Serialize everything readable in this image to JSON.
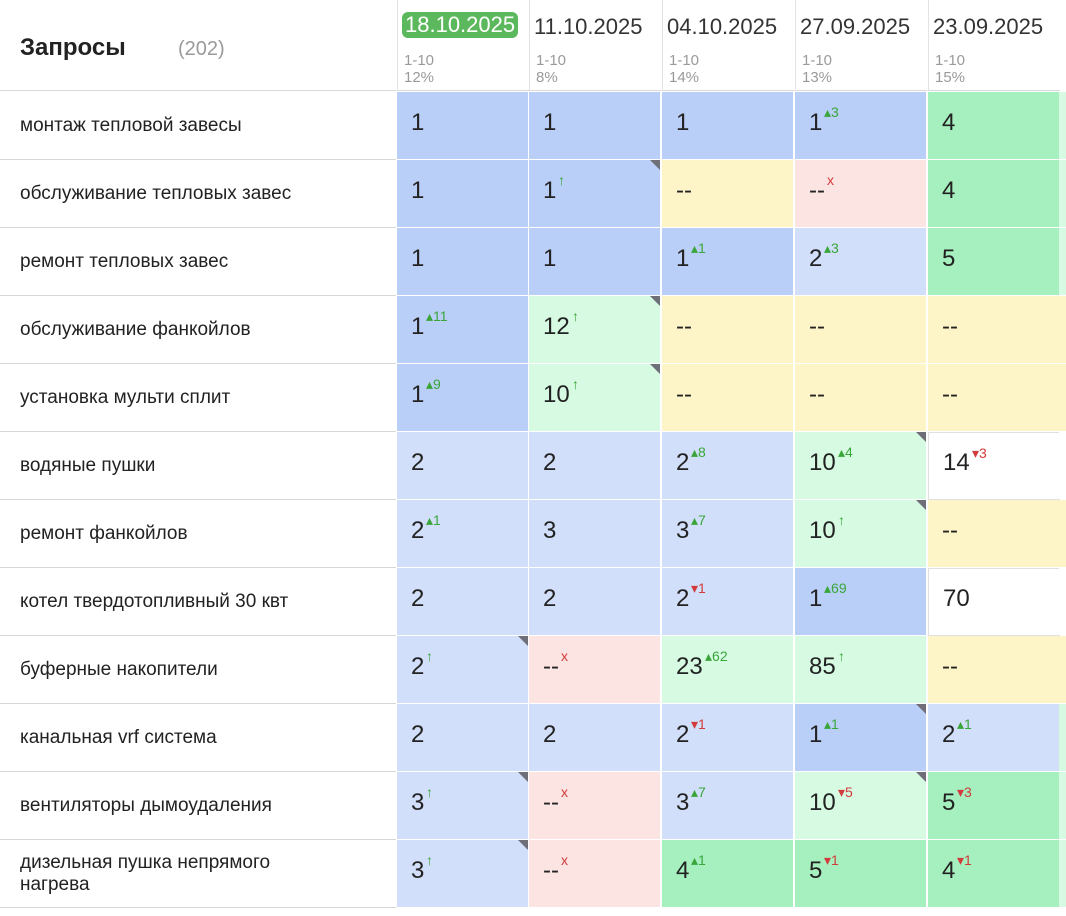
{
  "header": {
    "title": "Запросы",
    "count": "(202)"
  },
  "dates": [
    {
      "label": "18.10.2025",
      "range": "1-10",
      "pct": "12%",
      "active": true
    },
    {
      "label": "11.10.2025",
      "range": "1-10",
      "pct": "8%"
    },
    {
      "label": "04.10.2025",
      "range": "1-10",
      "pct": "14%"
    },
    {
      "label": "27.09.2025",
      "range": "1-10",
      "pct": "13%"
    },
    {
      "label": "23.09.2025",
      "range": "1-10",
      "pct": "15%"
    }
  ],
  "rows": [
    {
      "query": "монтаж тепловой завесы",
      "cells": [
        {
          "v": "1",
          "c": "blue1"
        },
        {
          "v": "1",
          "c": "blue1"
        },
        {
          "v": "1",
          "c": "blue1"
        },
        {
          "v": "1",
          "c": "blue1",
          "d": "3",
          "t": "up"
        },
        {
          "v": "4",
          "c": "green1"
        }
      ]
    },
    {
      "query": "обслуживание тепловых завес",
      "cells": [
        {
          "v": "1",
          "c": "blue1"
        },
        {
          "v": "1",
          "c": "blue1",
          "d": "↑",
          "t": "up",
          "corner": true
        },
        {
          "v": "--",
          "c": "yellow"
        },
        {
          "v": "--",
          "c": "red",
          "d": "x",
          "t": "x"
        },
        {
          "v": "4",
          "c": "green1"
        }
      ]
    },
    {
      "query": "ремонт тепловых завес",
      "cells": [
        {
          "v": "1",
          "c": "blue1"
        },
        {
          "v": "1",
          "c": "blue1"
        },
        {
          "v": "1",
          "c": "blue1",
          "d": "1",
          "t": "up"
        },
        {
          "v": "2",
          "c": "blue2",
          "d": "3",
          "t": "up"
        },
        {
          "v": "5",
          "c": "green1"
        }
      ]
    },
    {
      "query": "обслуживание фанкойлов",
      "cells": [
        {
          "v": "1",
          "c": "blue1",
          "d": "11",
          "t": "up"
        },
        {
          "v": "12",
          "c": "green2",
          "d": "↑",
          "t": "up",
          "corner": true
        },
        {
          "v": "--",
          "c": "yellow"
        },
        {
          "v": "--",
          "c": "yellow"
        },
        {
          "v": "--",
          "c": "yellow"
        }
      ]
    },
    {
      "query": "установка мульти сплит",
      "cells": [
        {
          "v": "1",
          "c": "blue1",
          "d": "9",
          "t": "up"
        },
        {
          "v": "10",
          "c": "green2",
          "d": "↑",
          "t": "up",
          "corner": true
        },
        {
          "v": "--",
          "c": "yellow"
        },
        {
          "v": "--",
          "c": "yellow"
        },
        {
          "v": "--",
          "c": "yellow"
        }
      ]
    },
    {
      "query": "водяные пушки",
      "cells": [
        {
          "v": "2",
          "c": "blue2"
        },
        {
          "v": "2",
          "c": "blue2"
        },
        {
          "v": "2",
          "c": "blue2",
          "d": "8",
          "t": "up"
        },
        {
          "v": "10",
          "c": "green2",
          "d": "4",
          "t": "up",
          "corner": true
        },
        {
          "v": "14",
          "c": "white",
          "d": "3",
          "t": "down"
        }
      ]
    },
    {
      "query": "ремонт фанкойлов",
      "cells": [
        {
          "v": "2",
          "c": "blue2",
          "d": "1",
          "t": "up"
        },
        {
          "v": "3",
          "c": "blue2"
        },
        {
          "v": "3",
          "c": "blue2",
          "d": "7",
          "t": "up"
        },
        {
          "v": "10",
          "c": "green2",
          "d": "↑",
          "t": "up",
          "corner": true
        },
        {
          "v": "--",
          "c": "yellow"
        }
      ]
    },
    {
      "query": "котел твердотопливный 30 квт",
      "cells": [
        {
          "v": "2",
          "c": "blue2"
        },
        {
          "v": "2",
          "c": "blue2"
        },
        {
          "v": "2",
          "c": "blue2",
          "d": "1",
          "t": "down"
        },
        {
          "v": "1",
          "c": "blue1",
          "d": "69",
          "t": "up"
        },
        {
          "v": "70",
          "c": "white"
        }
      ]
    },
    {
      "query": "буферные накопители",
      "cells": [
        {
          "v": "2",
          "c": "blue2",
          "d": "↑",
          "t": "up",
          "corner": true
        },
        {
          "v": "--",
          "c": "red",
          "d": "x",
          "t": "x"
        },
        {
          "v": "23",
          "c": "green2",
          "d": "62",
          "t": "up"
        },
        {
          "v": "85",
          "c": "green2",
          "d": "↑",
          "t": "up"
        },
        {
          "v": "--",
          "c": "yellow"
        }
      ]
    },
    {
      "query": "канальная vrf система",
      "cells": [
        {
          "v": "2",
          "c": "blue2"
        },
        {
          "v": "2",
          "c": "blue2"
        },
        {
          "v": "2",
          "c": "blue2",
          "d": "1",
          "t": "down"
        },
        {
          "v": "1",
          "c": "blue1",
          "d": "1",
          "t": "up",
          "corner": true
        },
        {
          "v": "2",
          "c": "blue2",
          "d": "1",
          "t": "up"
        }
      ]
    },
    {
      "query": "вентиляторы дымоудаления",
      "cells": [
        {
          "v": "3",
          "c": "blue2",
          "d": "↑",
          "t": "up",
          "corner": true
        },
        {
          "v": "--",
          "c": "red",
          "d": "x",
          "t": "x"
        },
        {
          "v": "3",
          "c": "blue2",
          "d": "7",
          "t": "up"
        },
        {
          "v": "10",
          "c": "green2",
          "d": "5",
          "t": "down",
          "corner": true
        },
        {
          "v": "5",
          "c": "green1",
          "d": "3",
          "t": "down"
        }
      ]
    },
    {
      "query": "дизельная пушка непрямого нагрева",
      "cells": [
        {
          "v": "3",
          "c": "blue2",
          "d": "↑",
          "t": "up",
          "corner": true
        },
        {
          "v": "--",
          "c": "red",
          "d": "x",
          "t": "x"
        },
        {
          "v": "4",
          "c": "green1",
          "d": "1",
          "t": "up"
        },
        {
          "v": "5",
          "c": "green1",
          "d": "1",
          "t": "down"
        },
        {
          "v": "4",
          "c": "green1",
          "d": "1",
          "t": "down"
        }
      ]
    }
  ]
}
